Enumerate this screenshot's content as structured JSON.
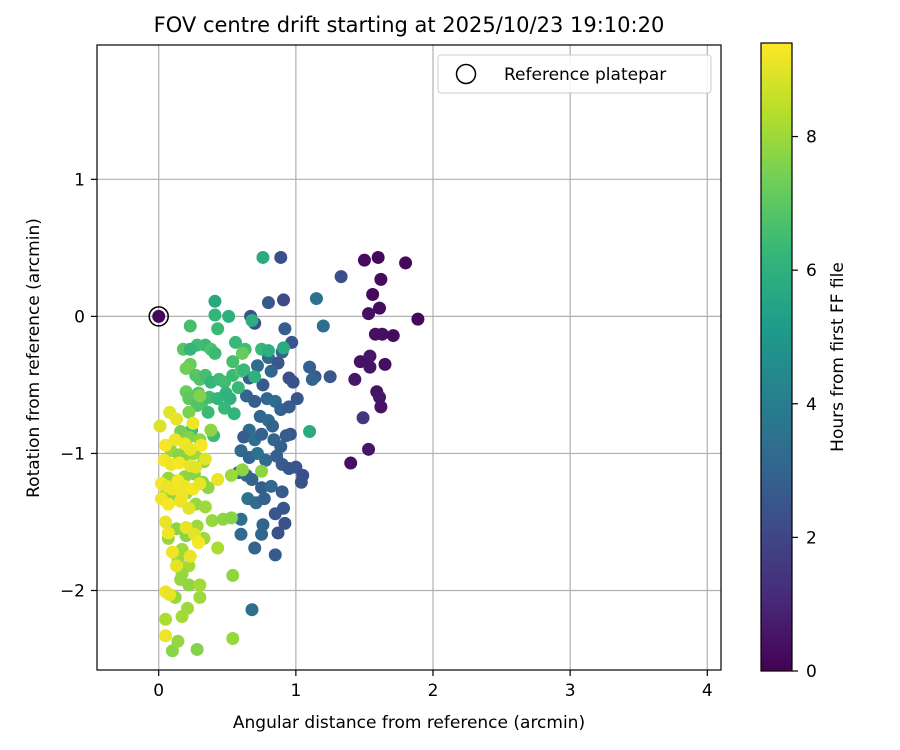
{
  "chart_data": {
    "type": "scatter",
    "title": "FOV centre drift starting at 2025/10/23 19:10:20",
    "xlabel": "Angular distance from reference (arcmin)",
    "ylabel": "Rotation from reference (arcmin)",
    "xlim": [
      -0.45,
      4.1
    ],
    "ylim": [
      -2.58,
      1.98
    ],
    "xticks": [
      0,
      1,
      2,
      3,
      4
    ],
    "xtick_labels": [
      "0",
      "1",
      "2",
      "3",
      "4"
    ],
    "yticks": [
      1,
      0,
      -1,
      -2
    ],
    "ytick_labels": [
      "1",
      "0",
      "−1",
      "−2"
    ],
    "grid": true,
    "legend": {
      "location": "top-right",
      "label": "Reference platepar"
    },
    "reference_point": {
      "x": 0,
      "y": 0
    },
    "colorbar": {
      "label": "Hours from first FF file",
      "range": [
        0,
        9.4
      ],
      "ticks": [
        0,
        2,
        4,
        6,
        8
      ],
      "tick_labels": [
        "0",
        "2",
        "4",
        "6",
        "8"
      ],
      "colormap": "viridis"
    },
    "colormap_stops": [
      "#440154",
      "#482878",
      "#3e4989",
      "#31688e",
      "#26828e",
      "#1f9e89",
      "#35b779",
      "#6ece58",
      "#b5de2b",
      "#fde725"
    ],
    "points": [
      [
        1.6,
        0.43,
        0.2
      ],
      [
        1.8,
        0.39,
        0.2
      ],
      [
        1.5,
        0.41,
        0.3
      ],
      [
        1.62,
        0.27,
        0.3
      ],
      [
        1.56,
        0.16,
        0.2
      ],
      [
        1.61,
        0.06,
        0.3
      ],
      [
        1.53,
        0.02,
        0.4
      ],
      [
        1.89,
        -0.02,
        0.2
      ],
      [
        1.58,
        -0.13,
        0.4
      ],
      [
        1.63,
        -0.13,
        0.4
      ],
      [
        1.71,
        -0.14,
        0.3
      ],
      [
        1.54,
        -0.29,
        0.6
      ],
      [
        1.47,
        -0.33,
        0.5
      ],
      [
        1.54,
        -0.37,
        0.5
      ],
      [
        1.65,
        -0.35,
        0.4
      ],
      [
        1.43,
        -0.46,
        0.6
      ],
      [
        1.59,
        -0.55,
        0.5
      ],
      [
        1.61,
        -0.59,
        0.6
      ],
      [
        1.62,
        -0.66,
        0.5
      ],
      [
        1.49,
        -0.74,
        1.5
      ],
      [
        1.53,
        -0.97,
        0.6
      ],
      [
        1.4,
        -1.07,
        0.4
      ],
      [
        1.33,
        0.29,
        2.2
      ],
      [
        1.15,
        0.13,
        3.5
      ],
      [
        0.89,
        0.43,
        2.3
      ],
      [
        0.91,
        0.12,
        2.1
      ],
      [
        0.8,
        0.1,
        2.6
      ],
      [
        0.67,
        0.0,
        2.4
      ],
      [
        0.7,
        -0.05,
        2.2
      ],
      [
        0.92,
        -0.09,
        2.8
      ],
      [
        1.2,
        -0.07,
        3.4
      ],
      [
        0.97,
        -0.19,
        2.5
      ],
      [
        0.9,
        -0.26,
        3.0
      ],
      [
        0.8,
        -0.3,
        3.2
      ],
      [
        0.87,
        -0.34,
        2.6
      ],
      [
        1.1,
        -0.37,
        2.9
      ],
      [
        1.14,
        -0.44,
        2.7
      ],
      [
        1.25,
        -0.44,
        2.6
      ],
      [
        1.12,
        -0.46,
        3.0
      ],
      [
        0.95,
        -0.45,
        2.3
      ],
      [
        0.98,
        -0.48,
        2.4
      ],
      [
        0.76,
        -0.5,
        2.7
      ],
      [
        0.66,
        -0.45,
        2.9
      ],
      [
        0.64,
        -0.58,
        3.0
      ],
      [
        0.7,
        -0.62,
        2.8
      ],
      [
        0.79,
        -0.6,
        3.1
      ],
      [
        0.85,
        -0.62,
        3.3
      ],
      [
        0.89,
        -0.68,
        2.9
      ],
      [
        0.95,
        -0.66,
        2.7
      ],
      [
        1.01,
        -0.6,
        2.6
      ],
      [
        0.74,
        -0.73,
        3.1
      ],
      [
        0.8,
        -0.76,
        3.3
      ],
      [
        0.83,
        -0.8,
        3.0
      ],
      [
        0.66,
        -0.83,
        3.2
      ],
      [
        0.62,
        -0.88,
        2.8
      ],
      [
        0.7,
        -0.9,
        3.4
      ],
      [
        0.75,
        -0.86,
        2.9
      ],
      [
        0.84,
        -0.9,
        3.1
      ],
      [
        0.89,
        -0.95,
        2.8
      ],
      [
        0.96,
        -0.86,
        2.5
      ],
      [
        0.6,
        -0.98,
        3.2
      ],
      [
        0.66,
        -1.03,
        3.0
      ],
      [
        0.72,
        -1.0,
        3.5
      ],
      [
        0.78,
        -1.05,
        3.2
      ],
      [
        0.86,
        -1.02,
        2.9
      ],
      [
        0.9,
        -1.08,
        2.7
      ],
      [
        0.95,
        -1.11,
        2.6
      ],
      [
        1.0,
        -1.1,
        2.5
      ],
      [
        1.05,
        -1.16,
        2.3
      ],
      [
        1.04,
        -1.21,
        2.4
      ],
      [
        0.58,
        -1.14,
        3.1
      ],
      [
        0.64,
        -1.16,
        3.4
      ],
      [
        0.68,
        -1.19,
        3.0
      ],
      [
        0.75,
        -1.25,
        2.8
      ],
      [
        0.82,
        -1.24,
        3.2
      ],
      [
        0.9,
        -1.28,
        2.7
      ],
      [
        0.65,
        -1.33,
        3.6
      ],
      [
        0.71,
        -1.36,
        3.3
      ],
      [
        0.77,
        -1.33,
        2.9
      ],
      [
        0.85,
        -1.44,
        2.6
      ],
      [
        0.91,
        -1.4,
        2.5
      ],
      [
        0.6,
        -1.48,
        3.4
      ],
      [
        0.76,
        -1.52,
        3.0
      ],
      [
        0.92,
        -1.51,
        2.4
      ],
      [
        0.87,
        -1.58,
        2.3
      ],
      [
        0.75,
        -1.59,
        3.1
      ],
      [
        0.6,
        -1.59,
        3.2
      ],
      [
        0.7,
        -1.69,
        3.0
      ],
      [
        0.85,
        -1.74,
        2.7
      ],
      [
        0.68,
        -2.14,
        3.4
      ],
      [
        0.93,
        -0.87,
        2.8
      ],
      [
        0.82,
        -0.4,
        3.1
      ],
      [
        0.72,
        -0.36,
        3.3
      ],
      [
        1.1,
        -0.84,
        5.8
      ],
      [
        0.76,
        0.43,
        5.8
      ],
      [
        0.41,
        0.11,
        5.7
      ],
      [
        0.51,
        0.0,
        6.0
      ],
      [
        0.41,
        0.01,
        6.2
      ],
      [
        0.23,
        -0.07,
        6.6
      ],
      [
        0.43,
        -0.09,
        6.4
      ],
      [
        0.68,
        -0.03,
        5.9
      ],
      [
        0.91,
        -0.23,
        5.8
      ],
      [
        0.34,
        -0.21,
        6.3
      ],
      [
        0.28,
        -0.21,
        6.5
      ],
      [
        0.18,
        -0.24,
        6.9
      ],
      [
        0.23,
        -0.24,
        6.2
      ],
      [
        0.38,
        -0.24,
        6.7
      ],
      [
        0.41,
        -0.27,
        6.4
      ],
      [
        0.56,
        -0.19,
        6.3
      ],
      [
        0.63,
        -0.24,
        6.5
      ],
      [
        0.75,
        -0.24,
        6.3
      ],
      [
        0.8,
        -0.25,
        5.9
      ],
      [
        0.23,
        -0.35,
        7.2
      ],
      [
        0.2,
        -0.38,
        7.3
      ],
      [
        0.27,
        -0.43,
        6.9
      ],
      [
        0.3,
        -0.46,
        6.8
      ],
      [
        0.34,
        -0.43,
        6.6
      ],
      [
        0.38,
        -0.48,
        6.2
      ],
      [
        0.44,
        -0.46,
        6.4
      ],
      [
        0.48,
        -0.48,
        6.5
      ],
      [
        0.54,
        -0.43,
        6.4
      ],
      [
        0.6,
        -0.4,
        6.8
      ],
      [
        0.2,
        -0.55,
        7.2
      ],
      [
        0.22,
        -0.6,
        7.0
      ],
      [
        0.29,
        -0.56,
        6.9
      ],
      [
        0.32,
        -0.62,
        6.7
      ],
      [
        0.37,
        -0.59,
        6.5
      ],
      [
        0.43,
        -0.6,
        6.2
      ],
      [
        0.49,
        -0.56,
        6.1
      ],
      [
        0.58,
        -0.52,
        6.3
      ],
      [
        0.52,
        -0.6,
        6.0
      ],
      [
        0.36,
        -0.7,
        6.4
      ],
      [
        0.28,
        -0.65,
        6.8
      ],
      [
        0.48,
        -0.67,
        6.3
      ],
      [
        0.55,
        -0.71,
        6.1
      ],
      [
        0.4,
        -0.87,
        6.4
      ],
      [
        0.24,
        -0.83,
        6.5
      ],
      [
        0.61,
        -0.27,
        7.2
      ],
      [
        0.54,
        -0.33,
        6.6
      ],
      [
        0.62,
        -0.39,
        6.3
      ],
      [
        0.7,
        -0.44,
        6.0
      ],
      [
        0.22,
        -0.7,
        7.5
      ],
      [
        0.16,
        -0.84,
        7.4
      ],
      [
        0.22,
        -0.88,
        7.6
      ],
      [
        0.3,
        -0.9,
        7.8
      ],
      [
        0.38,
        -0.83,
        7.8
      ],
      [
        0.09,
        -0.98,
        7.9
      ],
      [
        0.15,
        -1.01,
        7.7
      ],
      [
        0.2,
        -1.05,
        7.8
      ],
      [
        0.26,
        -1.0,
        8.0
      ],
      [
        0.33,
        -1.06,
        7.8
      ],
      [
        0.07,
        -1.18,
        7.9
      ],
      [
        0.13,
        -1.2,
        7.7
      ],
      [
        0.19,
        -1.17,
        7.8
      ],
      [
        0.26,
        -1.15,
        7.7
      ],
      [
        0.32,
        -1.21,
        7.7
      ],
      [
        0.36,
        -1.25,
        7.8
      ],
      [
        0.05,
        -1.3,
        7.9
      ],
      [
        0.11,
        -1.33,
        7.8
      ],
      [
        0.2,
        -1.29,
        7.9
      ],
      [
        0.27,
        -1.37,
        7.9
      ],
      [
        0.34,
        -1.39,
        8.0
      ],
      [
        0.28,
        -1.53,
        8.0
      ],
      [
        0.39,
        -1.49,
        7.9
      ],
      [
        0.47,
        -1.48,
        7.8
      ],
      [
        0.53,
        -1.47,
        7.7
      ],
      [
        0.13,
        -1.55,
        7.7
      ],
      [
        0.2,
        -1.6,
        7.7
      ],
      [
        0.07,
        -1.62,
        7.9
      ],
      [
        0.17,
        -1.7,
        8.0
      ],
      [
        0.33,
        -1.62,
        8.0
      ],
      [
        0.43,
        -1.69,
        8.2
      ],
      [
        0.14,
        -1.77,
        8.0
      ],
      [
        0.22,
        -1.82,
        8.1
      ],
      [
        0.17,
        -1.88,
        7.9
      ],
      [
        0.16,
        -1.92,
        7.9
      ],
      [
        0.22,
        -1.96,
        7.8
      ],
      [
        0.3,
        -1.96,
        8.1
      ],
      [
        0.3,
        -2.05,
        8.0
      ],
      [
        0.12,
        -2.05,
        7.9
      ],
      [
        0.05,
        -2.21,
        8.2
      ],
      [
        0.17,
        -2.19,
        8.1
      ],
      [
        0.21,
        -2.13,
        8.0
      ],
      [
        0.54,
        -1.89,
        7.8
      ],
      [
        0.54,
        -2.35,
        7.9
      ],
      [
        0.1,
        -2.44,
        7.7
      ],
      [
        0.14,
        -2.37,
        7.9
      ],
      [
        0.28,
        -2.43,
        7.6
      ],
      [
        0.61,
        -1.12,
        7.8
      ],
      [
        0.75,
        -1.13,
        7.8
      ],
      [
        0.53,
        -1.16,
        8.0
      ],
      [
        0.3,
        -0.58,
        7.6
      ],
      [
        0.01,
        -0.8,
        8.9
      ],
      [
        0.08,
        -0.7,
        9.0
      ],
      [
        0.13,
        -0.75,
        9.1
      ],
      [
        0.05,
        -0.94,
        9.3
      ],
      [
        0.12,
        -0.9,
        9.2
      ],
      [
        0.19,
        -0.93,
        9.2
      ],
      [
        0.23,
        -0.97,
        9.1
      ],
      [
        0.04,
        -1.05,
        9.3
      ],
      [
        0.09,
        -1.08,
        9.2
      ],
      [
        0.15,
        -1.07,
        9.3
      ],
      [
        0.23,
        -1.09,
        9.1
      ],
      [
        0.27,
        -1.1,
        9.0
      ],
      [
        0.02,
        -1.22,
        9.3
      ],
      [
        0.06,
        -1.24,
        9.1
      ],
      [
        0.1,
        -1.26,
        9.2
      ],
      [
        0.14,
        -1.2,
        9.3
      ],
      [
        0.19,
        -1.24,
        9.2
      ],
      [
        0.25,
        -1.26,
        9.3
      ],
      [
        0.3,
        -1.22,
        9.1
      ],
      [
        0.02,
        -1.33,
        9.2
      ],
      [
        0.07,
        -1.37,
        9.3
      ],
      [
        0.16,
        -1.35,
        9.2
      ],
      [
        0.22,
        -1.4,
        9.0
      ],
      [
        0.05,
        -1.5,
        9.1
      ],
      [
        0.2,
        -1.54,
        9.1
      ],
      [
        0.07,
        -1.58,
        9.2
      ],
      [
        0.26,
        -1.59,
        9.0
      ],
      [
        0.23,
        -1.75,
        9.1
      ],
      [
        0.1,
        -1.72,
        9.2
      ],
      [
        0.13,
        -1.82,
        9.0
      ],
      [
        0.05,
        -2.01,
        9.2
      ],
      [
        0.08,
        -2.03,
        9.1
      ],
      [
        0.05,
        -2.33,
        9.2
      ],
      [
        0.29,
        -1.65,
        9.3
      ],
      [
        0.34,
        -1.04,
        9.0
      ],
      [
        0.25,
        -0.78,
        9.2
      ],
      [
        0.31,
        -0.94,
        9.3
      ],
      [
        0.43,
        -1.19,
        9.1
      ],
      [
        0.17,
        -1.31,
        9.2
      ]
    ]
  }
}
